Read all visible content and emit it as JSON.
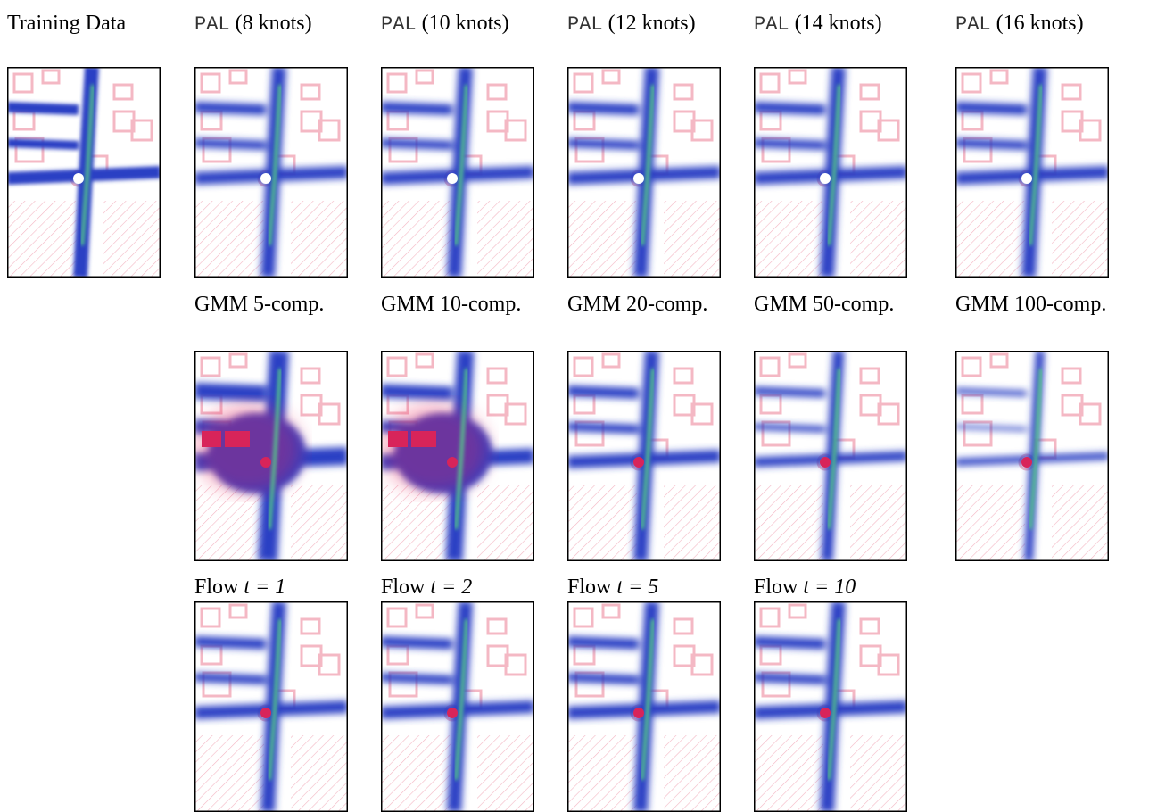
{
  "rows": [
    {
      "panels": [
        {
          "caption": {
            "text": "Training Data"
          }
        },
        {
          "caption": {
            "code": "PAL",
            "text": "(8 knots)"
          }
        },
        {
          "caption": {
            "code": "PAL",
            "text": "(10 knots)"
          }
        },
        {
          "caption": {
            "code": "PAL",
            "text": "(12 knots)"
          }
        },
        {
          "caption": {
            "code": "PAL",
            "text": "(14 knots)"
          }
        },
        {
          "caption": {
            "code": "PAL",
            "text": "(16 knots)"
          }
        }
      ]
    },
    {
      "panels": [
        {
          "caption": {
            "text": "GMM 5-comp."
          }
        },
        {
          "caption": {
            "text": "GMM 10-comp."
          }
        },
        {
          "caption": {
            "text": "GMM 20-comp."
          }
        },
        {
          "caption": {
            "text": "GMM 50-comp."
          }
        },
        {
          "caption": {
            "text": "GMM 100-comp."
          }
        }
      ]
    },
    {
      "panels": [
        {
          "caption": {
            "text": "Flow",
            "math": "t = 1"
          }
        },
        {
          "caption": {
            "text": "Flow",
            "math": "t = 2"
          }
        },
        {
          "caption": {
            "text": "Flow",
            "math": "t = 5"
          }
        },
        {
          "caption": {
            "text": "Flow",
            "math": "t = 10"
          }
        }
      ]
    }
  ]
}
